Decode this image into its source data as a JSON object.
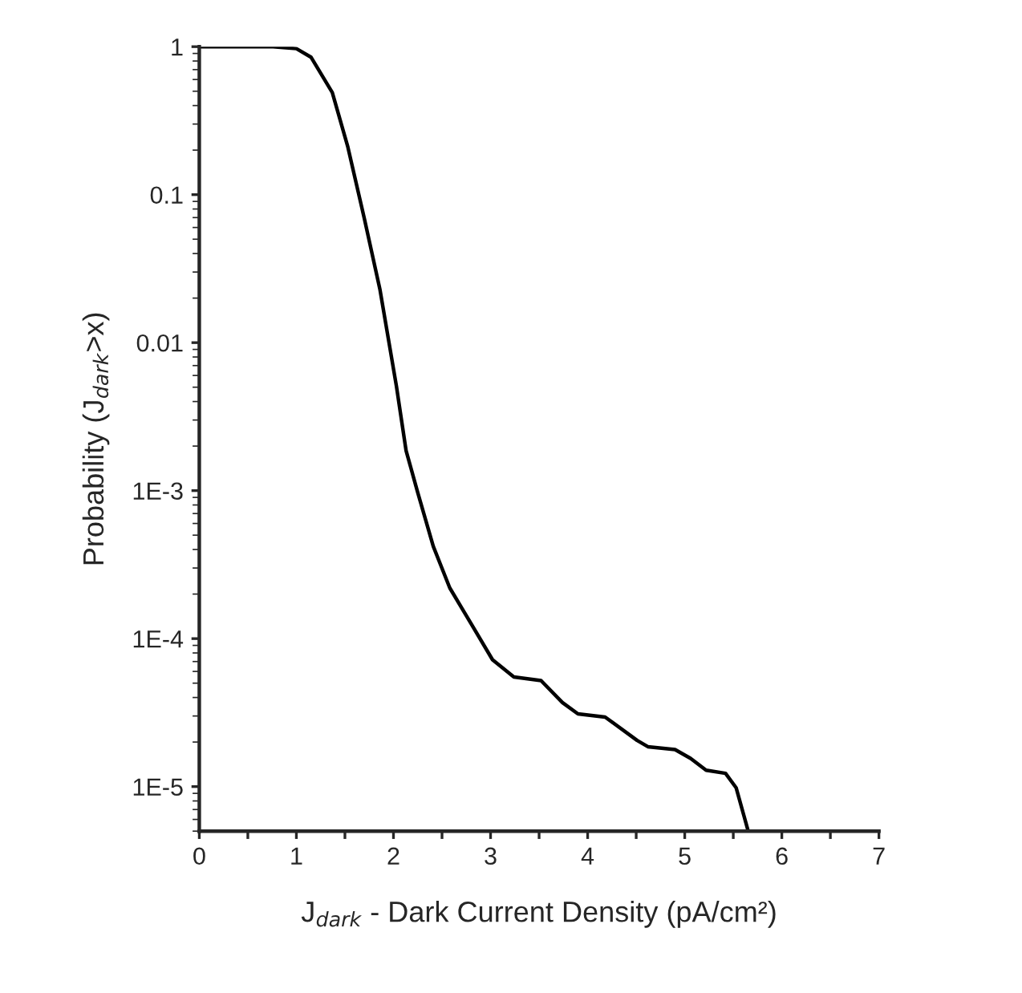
{
  "chart_data": {
    "type": "line",
    "xlabel": "J$_{dark}$ - Dark Current Density (pA/cm²)",
    "ylabel": "Probability (J$_{dark}$>x)",
    "log": "y",
    "x": [
      0,
      0.5,
      0.76,
      1.0,
      1.15,
      1.37,
      1.53,
      1.7,
      1.86,
      2.03,
      2.13,
      2.25,
      2.41,
      2.58,
      2.8,
      3.02,
      3.24,
      3.52,
      3.74,
      3.9,
      4.18,
      4.51,
      4.62,
      4.9,
      5.06,
      5.22,
      5.42,
      5.53,
      5.65
    ],
    "series": [
      {
        "color": "#000000",
        "values": [
          1,
          1,
          1,
          0.97,
          0.85,
          0.49,
          0.21,
          0.069,
          0.023,
          0.0051,
          0.00186,
          0.00097,
          0.00042,
          0.00022,
          0.000126,
          7.2e-05,
          5.5e-05,
          5.2e-05,
          3.7e-05,
          3.1e-05,
          2.95e-05,
          2.05e-05,
          1.86e-05,
          1.78e-05,
          1.55e-05,
          1.29e-05,
          1.23e-05,
          9.8e-06,
          5.1e-06
        ]
      }
    ],
    "xlim": [
      0,
      7
    ],
    "xticks": [
      0,
      {
        "value": 0.5,
        "label": null
      },
      1,
      {
        "value": 1.5,
        "label": null
      },
      2,
      {
        "value": 2.5,
        "label": null
      },
      3,
      {
        "value": 3.5,
        "label": null
      },
      4,
      {
        "value": 4.5,
        "label": null
      },
      5,
      {
        "value": 5.5,
        "label": null
      },
      6,
      {
        "value": 6.5,
        "label": null
      },
      7
    ],
    "ylim": [
      5e-06,
      1
    ],
    "yticks": [
      {
        "value": 1e-05,
        "label": "1E-5"
      },
      {
        "value": 0.0001,
        "label": "1E-4"
      },
      {
        "value": 0.001,
        "label": "1E-3"
      },
      {
        "value": 0.01,
        "label": "0.01"
      },
      {
        "value": 0.1,
        "label": "0.1"
      },
      {
        "value": 1,
        "label": "1"
      }
    ],
    "grid": false,
    "legend": false,
    "marker": "none",
    "line_style": "solid"
  }
}
